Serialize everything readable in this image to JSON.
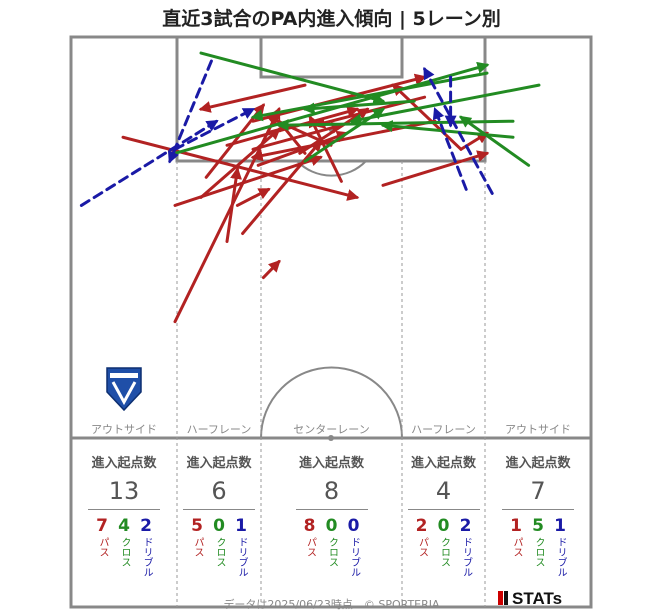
{
  "title": "直近3試合のPA内進入傾向 | 5レーン別",
  "footer": {
    "credit": "データは2025/06/23時点　© SPORTERIA",
    "brand": "STATs"
  },
  "lanes": [
    {
      "label": "アウトサイド",
      "head": "進入起点数",
      "total": "13",
      "pass": "7",
      "cross": "4",
      "dribble": "2"
    },
    {
      "label": "ハーフレーン",
      "head": "進入起点数",
      "total": "6",
      "pass": "5",
      "cross": "0",
      "dribble": "1"
    },
    {
      "label": "センターレーン",
      "head": "進入起点数",
      "total": "8",
      "pass": "8",
      "cross": "0",
      "dribble": "0"
    },
    {
      "label": "ハーフレーン",
      "head": "進入起点数",
      "total": "4",
      "pass": "2",
      "cross": "0",
      "dribble": "2"
    },
    {
      "label": "アウトサイド",
      "head": "進入起点数",
      "total": "7",
      "pass": "1",
      "cross": "5",
      "dribble": "1"
    }
  ],
  "types": {
    "pass": "パス",
    "cross": "クロス",
    "dribble": "ドリブル"
  },
  "colors": {
    "pass": "#b22222",
    "cross": "#228b22",
    "dribble": "#1a1aa6",
    "lines": "#888888"
  },
  "chart_data": {
    "type": "pitch_arrow_map",
    "units": "pitch coordinates: x 0-100 left to right across the attacking half, y 0-100 from halfway line (0) to goal line (100)",
    "passes": [
      {
        "from": [
          20,
          29
        ],
        "to": [
          40,
          82
        ]
      },
      {
        "from": [
          10,
          75
        ],
        "to": [
          55,
          60
        ]
      },
      {
        "from": [
          20,
          58
        ],
        "to": [
          48,
          70
        ]
      },
      {
        "from": [
          45,
          88
        ],
        "to": [
          25,
          82
        ]
      },
      {
        "from": [
          35,
          72
        ],
        "to": [
          52,
          78
        ]
      },
      {
        "from": [
          30,
          73
        ],
        "to": [
          55,
          82
        ]
      },
      {
        "from": [
          26,
          65
        ],
        "to": [
          37,
          83
        ]
      },
      {
        "from": [
          30,
          49
        ],
        "to": [
          32,
          67
        ]
      },
      {
        "from": [
          33,
          51
        ],
        "to": [
          48,
          74
        ]
      },
      {
        "from": [
          25,
          60
        ],
        "to": [
          40,
          77
        ]
      },
      {
        "from": [
          35,
          79
        ],
        "to": [
          68,
          90
        ]
      },
      {
        "from": [
          60,
          63
        ],
        "to": [
          80,
          71
        ]
      },
      {
        "from": [
          44,
          71
        ],
        "to": [
          57,
          82
        ]
      },
      {
        "from": [
          70,
          79
        ],
        "to": [
          35,
          70
        ]
      },
      {
        "from": [
          50,
          73
        ],
        "to": [
          38,
          80
        ]
      },
      {
        "from": [
          52,
          64
        ],
        "to": [
          46,
          80
        ]
      },
      {
        "from": [
          45,
          71
        ],
        "to": [
          40,
          79
        ]
      },
      {
        "from": [
          68,
          85
        ],
        "to": [
          47,
          78
        ]
      },
      {
        "from": [
          36,
          68
        ],
        "to": [
          53,
          76
        ]
      },
      {
        "from": [
          75,
          72
        ],
        "to": [
          62,
          88
        ]
      },
      {
        "from": [
          32,
          58
        ],
        "to": [
          38,
          62
        ]
      },
      {
        "from": [
          75,
          72
        ],
        "to": [
          80,
          76
        ]
      },
      {
        "from": [
          37,
          40
        ],
        "to": [
          40,
          44
        ]
      }
    ],
    "crosses": [
      {
        "from": [
          25,
          96
        ],
        "to": [
          60,
          84
        ]
      },
      {
        "from": [
          20,
          71
        ],
        "to": [
          80,
          93
        ]
      },
      {
        "from": [
          45,
          69
        ],
        "to": [
          60,
          82
        ]
      },
      {
        "from": [
          90,
          88
        ],
        "to": [
          54,
          79
        ]
      },
      {
        "from": [
          80,
          91
        ],
        "to": [
          35,
          80
        ]
      },
      {
        "from": [
          85,
          75
        ],
        "to": [
          60,
          78
        ]
      },
      {
        "from": [
          88,
          68
        ],
        "to": [
          75,
          80
        ]
      },
      {
        "from": [
          85,
          79
        ],
        "to": [
          40,
          78
        ]
      },
      {
        "from": [
          66,
          84
        ],
        "to": [
          45,
          82
        ]
      }
    ],
    "dribbles": [
      {
        "from": [
          2,
          58
        ],
        "to": [
          28,
          79
        ]
      },
      {
        "from": [
          27,
          94
        ],
        "to": [
          19,
          69
        ]
      },
      {
        "from": [
          20,
          72
        ],
        "to": [
          35,
          82
        ]
      },
      {
        "from": [
          81,
          61
        ],
        "to": [
          68,
          92
        ]
      },
      {
        "from": [
          76,
          62
        ],
        "to": [
          70,
          82
        ]
      },
      {
        "from": [
          73,
          90
        ],
        "to": [
          73,
          78
        ]
      }
    ]
  }
}
